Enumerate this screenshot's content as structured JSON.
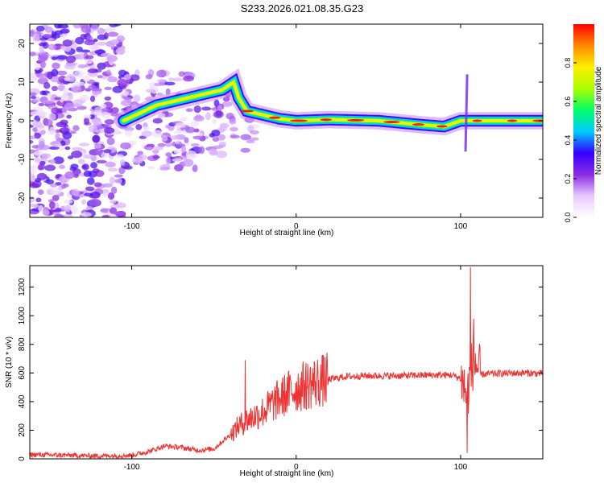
{
  "title": "S233.2026.021.08.35.G23",
  "chart_data": [
    {
      "type": "heatmap",
      "xlabel": "Height of straight line (km)",
      "ylabel": "Frequency (Hz)",
      "xlim": [
        -162,
        150
      ],
      "ylim": [
        -25,
        25
      ],
      "xticks": [
        -100,
        0,
        100
      ],
      "yticks": [
        20,
        10,
        0,
        -10,
        -20
      ],
      "ridge_track": [
        [
          -105,
          0
        ],
        [
          -95,
          2
        ],
        [
          -85,
          4
        ],
        [
          -75,
          5
        ],
        [
          -65,
          6
        ],
        [
          -55,
          7
        ],
        [
          -45,
          8
        ],
        [
          -38,
          10
        ],
        [
          -35,
          6
        ],
        [
          -30,
          2.5
        ],
        [
          -20,
          1.5
        ],
        [
          -10,
          0.5
        ],
        [
          0,
          0
        ],
        [
          20,
          0.3
        ],
        [
          50,
          0
        ],
        [
          75,
          -1
        ],
        [
          90,
          -1.5
        ],
        [
          100,
          0
        ],
        [
          110,
          0
        ],
        [
          150,
          0
        ]
      ],
      "colorbar": {
        "label": "Normalized spectral amplitude",
        "range": [
          0.0,
          1.0
        ],
        "ticks": [
          "0.0",
          "0.2",
          "0.4",
          "0.6",
          "0.8"
        ],
        "colors": [
          "#ffffff",
          "#e8c8ff",
          "#8a2be2",
          "#3300ff",
          "#00ccff",
          "#00ff66",
          "#aaff00",
          "#ffee00",
          "#ff8800",
          "#ff0000"
        ]
      }
    },
    {
      "type": "line",
      "xlabel": "Height of straight line (km)",
      "ylabel": "SNR (10 * v/v)",
      "xlim": [
        -162,
        150
      ],
      "ylim": [
        0,
        1350
      ],
      "xticks": [
        -100,
        0,
        100
      ],
      "yticks": [
        0,
        200,
        400,
        600,
        800,
        1000,
        1200
      ],
      "color": "#ee3333",
      "envelope": {
        "x": [
          -162,
          -140,
          -120,
          -100,
          -90,
          -80,
          -70,
          -60,
          -50,
          -45,
          -40,
          -35,
          -30,
          -25,
          -20,
          -15,
          -10,
          -5,
          0,
          10,
          20,
          30,
          40,
          60,
          80,
          95,
          100,
          104,
          106,
          108,
          112,
          120,
          130,
          140,
          150
        ],
        "y": [
          30,
          25,
          20,
          25,
          50,
          90,
          80,
          60,
          70,
          120,
          170,
          230,
          270,
          300,
          330,
          380,
          420,
          460,
          490,
          530,
          555,
          575,
          580,
          580,
          585,
          585,
          560,
          450,
          580,
          700,
          590,
          595,
          598,
          600,
          595
        ]
      },
      "peaks": [
        {
          "x": -31,
          "y": 690
        },
        {
          "x": 104,
          "y": 40
        },
        {
          "x": 106,
          "y": 1340
        },
        {
          "x": 108,
          "y": 980
        }
      ]
    }
  ]
}
